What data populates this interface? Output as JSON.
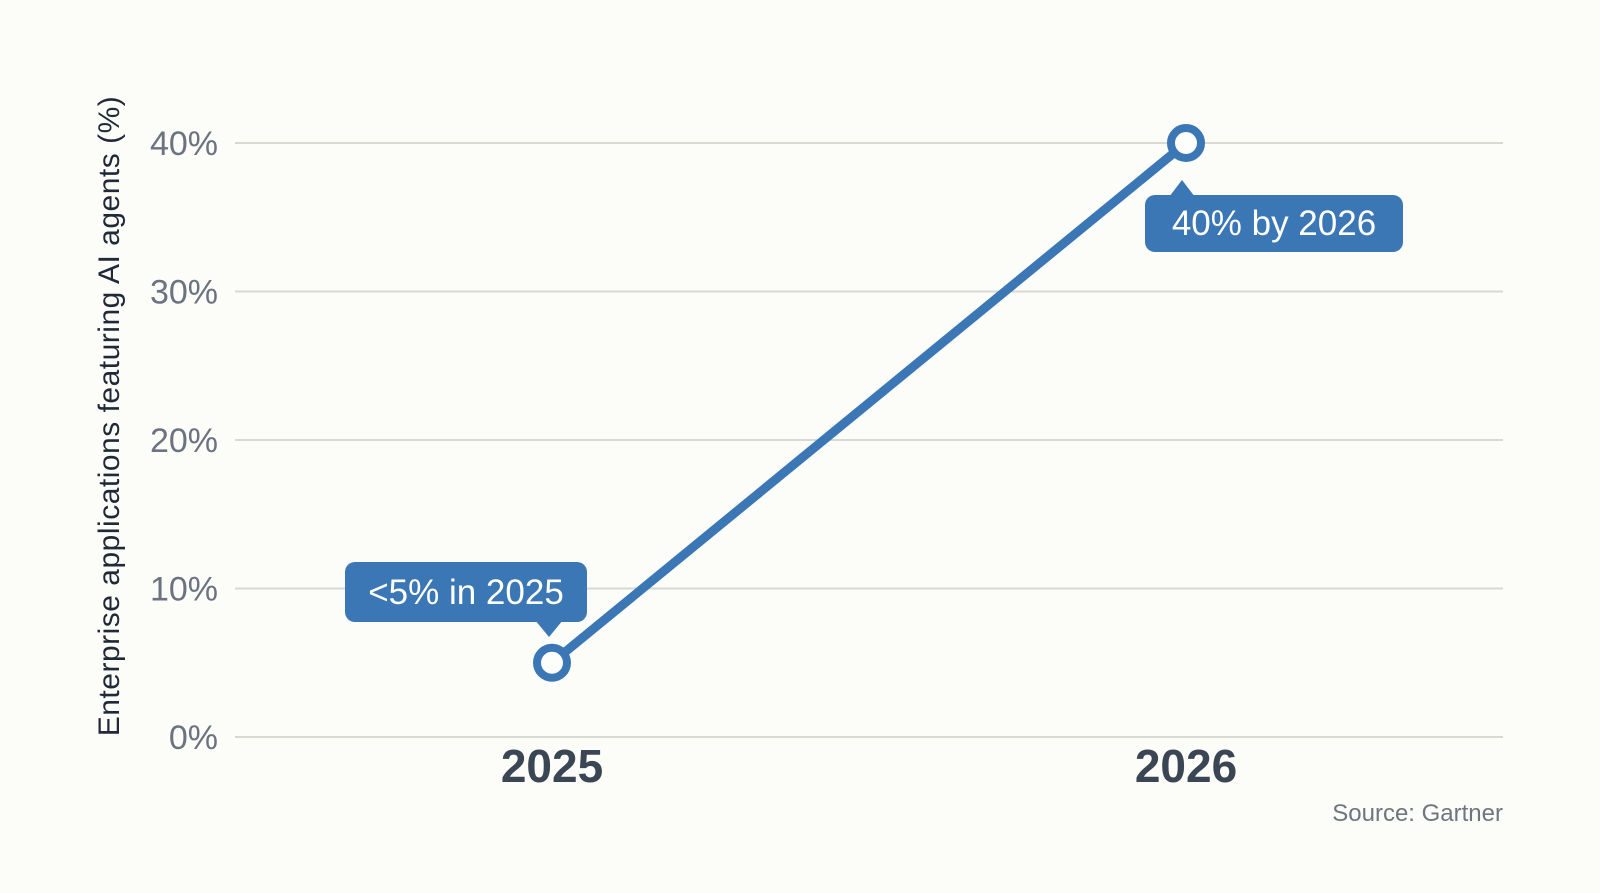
{
  "chart_data": {
    "type": "line",
    "x": [
      "2025",
      "2026"
    ],
    "series": [
      {
        "name": "Enterprise applications featuring AI agents",
        "values": [
          5,
          40
        ]
      }
    ],
    "ylabel": "Enterprise applications featuring AI agents (%)",
    "ylim": [
      0,
      40
    ],
    "yticks": [
      0,
      10,
      20,
      30,
      40
    ],
    "ytick_labels": [
      "0%",
      "10%",
      "20%",
      "30%",
      "40%"
    ],
    "grid": "horizontal",
    "legend": "none",
    "annotations": [
      {
        "text": "<5% in 2025",
        "x": "2025",
        "y": 5,
        "tail": "bottom-right"
      },
      {
        "text": "40% by 2026",
        "x": "2026",
        "y": 40,
        "tail": "top-left"
      }
    ],
    "source": "Source: Gartner"
  },
  "colors": {
    "accent_blue": "#3c77b5",
    "background": "#fcfcf8",
    "gridline": "#d9d9d4",
    "ytick_text": "#6b7280",
    "xtick_text": "#3a4654",
    "axis_title_text": "#1f2937",
    "source_text": "#6e7680",
    "annotation_text": "#ffffff"
  }
}
